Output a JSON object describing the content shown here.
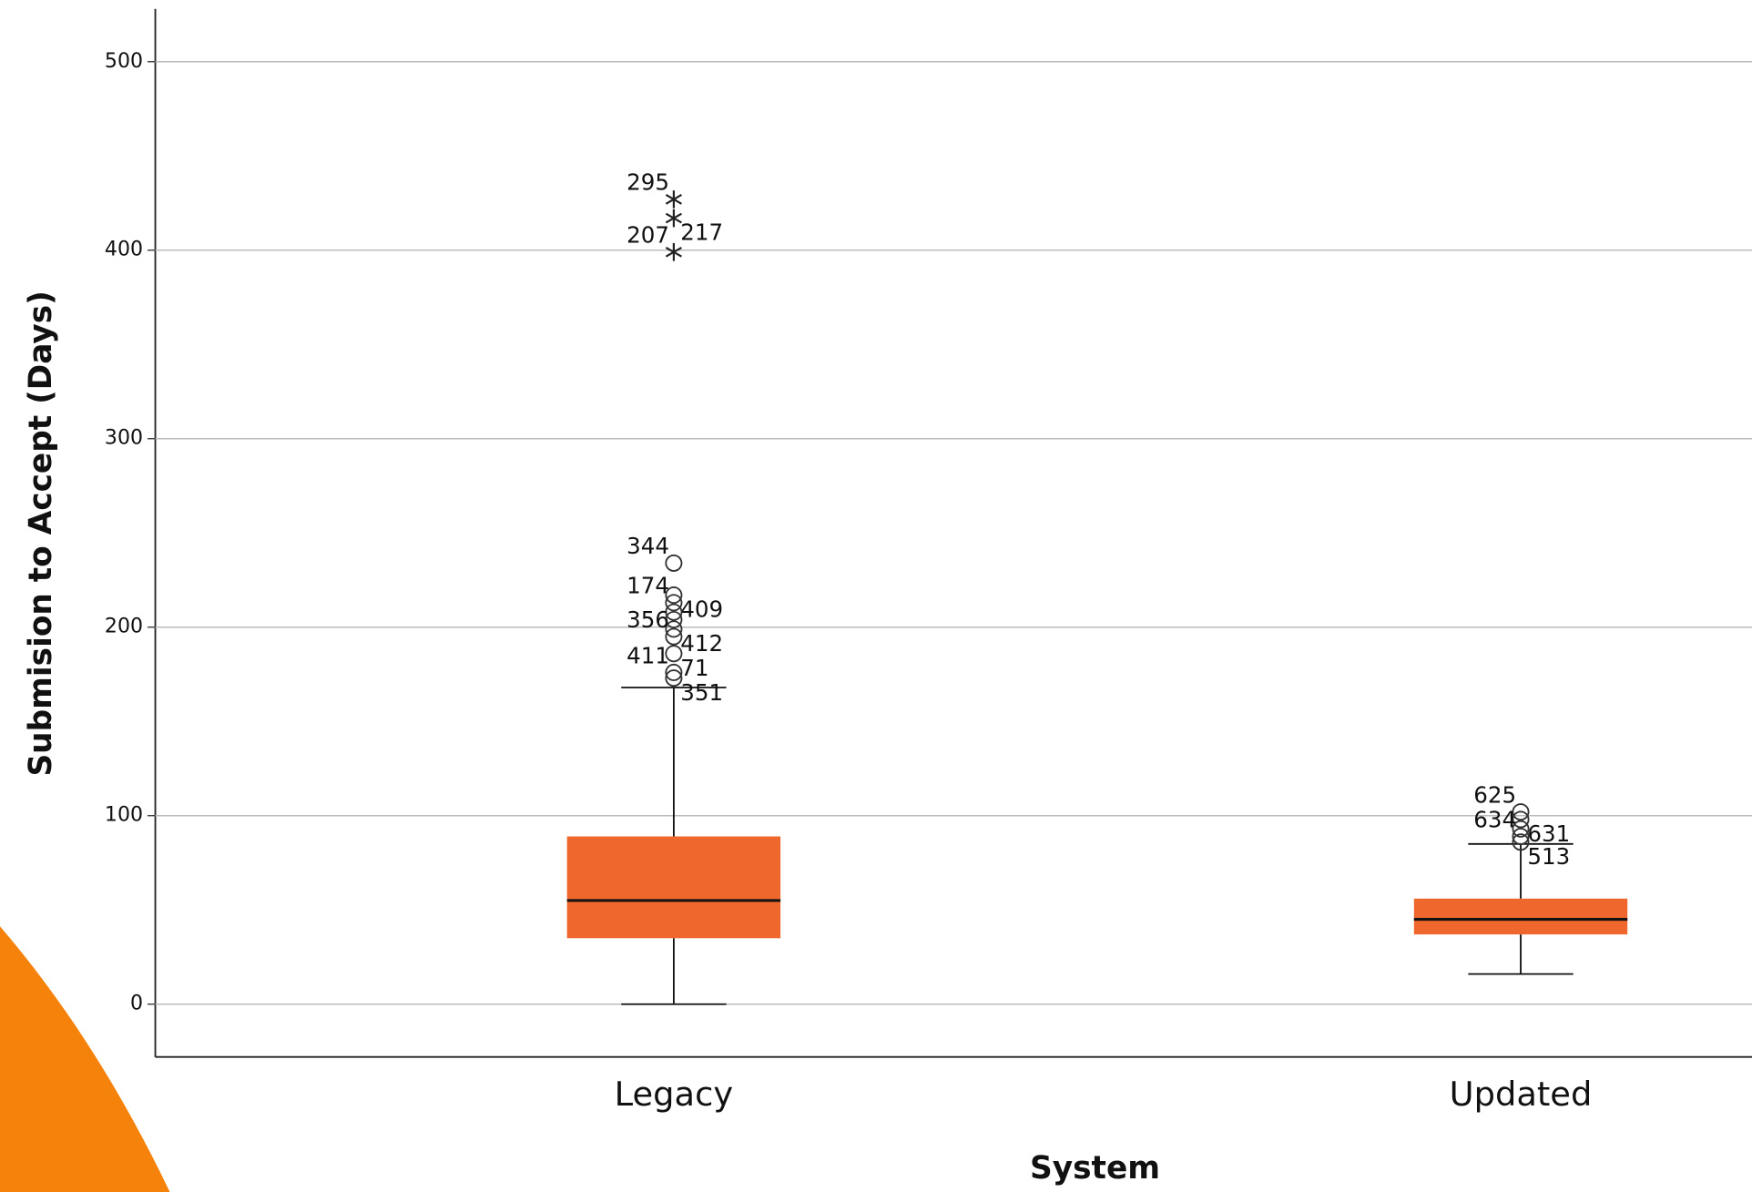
{
  "chart_data": {
    "type": "box",
    "y_label": "Submision to Accept (Days)",
    "x_label": "System",
    "categories": [
      "Legacy",
      "Updated"
    ],
    "color": "#f0672d",
    "ylim": [
      -28,
      528
    ],
    "yticks": [
      0,
      100,
      200,
      300,
      400,
      500
    ],
    "grid": true,
    "boxes": [
      {
        "whisker_low": 0,
        "q1": 35,
        "median": 55,
        "q3": 89,
        "whisker_high": 168,
        "outliers": [
          {
            "value": 234,
            "label": "344"
          },
          {
            "value": 217,
            "label": "409"
          },
          {
            "value": 213,
            "label": "174"
          },
          {
            "value": 208
          },
          {
            "value": 204
          },
          {
            "value": 199,
            "label": "412"
          },
          {
            "value": 195,
            "label": "356"
          },
          {
            "value": 186,
            "label": "71"
          },
          {
            "value": 176,
            "label": "411"
          },
          {
            "value": 173,
            "label": "351"
          }
        ],
        "extremes": [
          {
            "value": 427,
            "label": "295"
          },
          {
            "value": 417,
            "label": "217"
          },
          {
            "value": 399,
            "label": "207"
          }
        ]
      },
      {
        "whisker_low": 16,
        "q1": 37,
        "median": 45,
        "q3": 56,
        "whisker_high": 85,
        "outliers": [
          {
            "value": 102,
            "label": "625"
          },
          {
            "value": 98,
            "label": "631"
          },
          {
            "value": 93
          },
          {
            "value": 89,
            "label": "634"
          },
          {
            "value": 86,
            "label": "513"
          }
        ],
        "extremes": []
      }
    ]
  }
}
